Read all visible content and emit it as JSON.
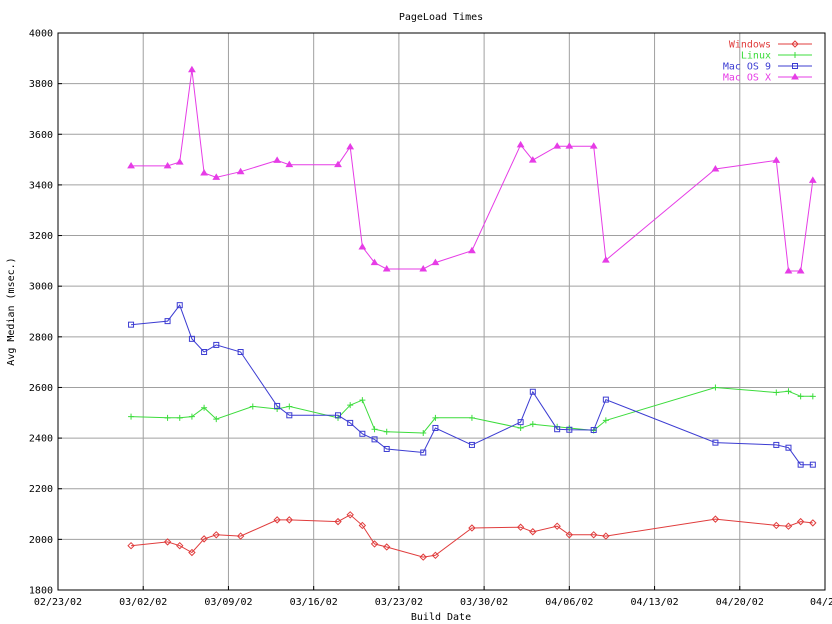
{
  "chart_data": {
    "type": "line",
    "title": "PageLoad Times",
    "xlabel": "Build Date",
    "ylabel": "Avg Median (msec.)",
    "ylim": [
      1800,
      4000
    ],
    "yticks": [
      1800,
      2000,
      2200,
      2400,
      2600,
      2800,
      3000,
      3200,
      3400,
      3600,
      3800,
      4000
    ],
    "xlim": [
      "2002-02-23",
      "2002-04-27"
    ],
    "xticks": [
      "02/23/02",
      "03/02/02",
      "03/09/02",
      "03/16/02",
      "03/23/02",
      "03/30/02",
      "04/06/02",
      "04/13/02",
      "04/20/02",
      "04/27"
    ],
    "grid": true,
    "legend_position": "top-right",
    "series": [
      {
        "name": "Windows",
        "color": "#e03c3c",
        "marker": "diamond",
        "points": [
          [
            "2002-03-01",
            1975
          ],
          [
            "2002-03-04",
            1990
          ],
          [
            "2002-03-05",
            1975
          ],
          [
            "2002-03-06",
            1948
          ],
          [
            "2002-03-07",
            2002
          ],
          [
            "2002-03-08",
            2018
          ],
          [
            "2002-03-10",
            2013
          ],
          [
            "2002-03-13",
            2077
          ],
          [
            "2002-03-14",
            2077
          ],
          [
            "2002-03-18",
            2070
          ],
          [
            "2002-03-19",
            2097
          ],
          [
            "2002-03-20",
            2055
          ],
          [
            "2002-03-21",
            1982
          ],
          [
            "2002-03-22",
            1970
          ],
          [
            "2002-03-25",
            1930
          ],
          [
            "2002-03-26",
            1937
          ],
          [
            "2002-03-29",
            2045
          ],
          [
            "2002-04-02",
            2048
          ],
          [
            "2002-04-03",
            2030
          ],
          [
            "2002-04-05",
            2052
          ],
          [
            "2002-04-06",
            2018
          ],
          [
            "2002-04-08",
            2018
          ],
          [
            "2002-04-09",
            2013
          ],
          [
            "2002-04-18",
            2080
          ],
          [
            "2002-04-23",
            2055
          ],
          [
            "2002-04-24",
            2052
          ],
          [
            "2002-04-25",
            2070
          ],
          [
            "2002-04-26",
            2065
          ]
        ]
      },
      {
        "name": "Linux",
        "color": "#3cdc3c",
        "marker": "plus",
        "points": [
          [
            "2002-03-01",
            2485
          ],
          [
            "2002-03-04",
            2480
          ],
          [
            "2002-03-05",
            2480
          ],
          [
            "2002-03-06",
            2485
          ],
          [
            "2002-03-07",
            2520
          ],
          [
            "2002-03-08",
            2475
          ],
          [
            "2002-03-11",
            2525
          ],
          [
            "2002-03-13",
            2515
          ],
          [
            "2002-03-14",
            2525
          ],
          [
            "2002-03-18",
            2480
          ],
          [
            "2002-03-19",
            2530
          ],
          [
            "2002-03-20",
            2550
          ],
          [
            "2002-03-21",
            2435
          ],
          [
            "2002-03-22",
            2425
          ],
          [
            "2002-03-25",
            2420
          ],
          [
            "2002-03-26",
            2480
          ],
          [
            "2002-03-29",
            2480
          ],
          [
            "2002-04-02",
            2440
          ],
          [
            "2002-04-03",
            2455
          ],
          [
            "2002-04-05",
            2445
          ],
          [
            "2002-04-06",
            2440
          ],
          [
            "2002-04-08",
            2430
          ],
          [
            "2002-04-09",
            2470
          ],
          [
            "2002-04-18",
            2600
          ],
          [
            "2002-04-23",
            2580
          ],
          [
            "2002-04-24",
            2585
          ],
          [
            "2002-04-25",
            2565
          ],
          [
            "2002-04-26",
            2565
          ]
        ]
      },
      {
        "name": "Mac OS 9",
        "color": "#3c3cd2",
        "marker": "square",
        "points": [
          [
            "2002-03-01",
            2848
          ],
          [
            "2002-03-04",
            2862
          ],
          [
            "2002-03-05",
            2925
          ],
          [
            "2002-03-06",
            2792
          ],
          [
            "2002-03-07",
            2740
          ],
          [
            "2002-03-08",
            2768
          ],
          [
            "2002-03-10",
            2740
          ],
          [
            "2002-03-13",
            2527
          ],
          [
            "2002-03-14",
            2490
          ],
          [
            "2002-03-18",
            2490
          ],
          [
            "2002-03-19",
            2460
          ],
          [
            "2002-03-20",
            2417
          ],
          [
            "2002-03-21",
            2395
          ],
          [
            "2002-03-22",
            2357
          ],
          [
            "2002-03-25",
            2343
          ],
          [
            "2002-03-26",
            2440
          ],
          [
            "2002-03-29",
            2373
          ],
          [
            "2002-04-02",
            2463
          ],
          [
            "2002-04-03",
            2583
          ],
          [
            "2002-04-05",
            2435
          ],
          [
            "2002-04-06",
            2433
          ],
          [
            "2002-04-08",
            2432
          ],
          [
            "2002-04-09",
            2552
          ],
          [
            "2002-04-18",
            2382
          ],
          [
            "2002-04-23",
            2373
          ],
          [
            "2002-04-24",
            2362
          ],
          [
            "2002-04-25",
            2295
          ],
          [
            "2002-04-26",
            2295
          ]
        ]
      },
      {
        "name": "Mac OS X",
        "color": "#e63ce6",
        "marker": "triangle",
        "points": [
          [
            "2002-03-01",
            3475
          ],
          [
            "2002-03-04",
            3475
          ],
          [
            "2002-03-05",
            3490
          ],
          [
            "2002-03-06",
            3855
          ],
          [
            "2002-03-07",
            3447
          ],
          [
            "2002-03-08",
            3430
          ],
          [
            "2002-03-10",
            3452
          ],
          [
            "2002-03-13",
            3497
          ],
          [
            "2002-03-14",
            3480
          ],
          [
            "2002-03-18",
            3480
          ],
          [
            "2002-03-19",
            3550
          ],
          [
            "2002-03-20",
            3155
          ],
          [
            "2002-03-21",
            3093
          ],
          [
            "2002-03-22",
            3068
          ],
          [
            "2002-03-25",
            3068
          ],
          [
            "2002-03-26",
            3093
          ],
          [
            "2002-03-29",
            3140
          ],
          [
            "2002-04-02",
            3558
          ],
          [
            "2002-04-03",
            3498
          ],
          [
            "2002-04-05",
            3553
          ],
          [
            "2002-04-06",
            3553
          ],
          [
            "2002-04-08",
            3553
          ],
          [
            "2002-04-09",
            3103
          ],
          [
            "2002-04-18",
            3463
          ],
          [
            "2002-04-23",
            3497
          ],
          [
            "2002-04-24",
            3060
          ],
          [
            "2002-04-25",
            3060
          ],
          [
            "2002-04-26",
            3418
          ]
        ]
      }
    ]
  }
}
